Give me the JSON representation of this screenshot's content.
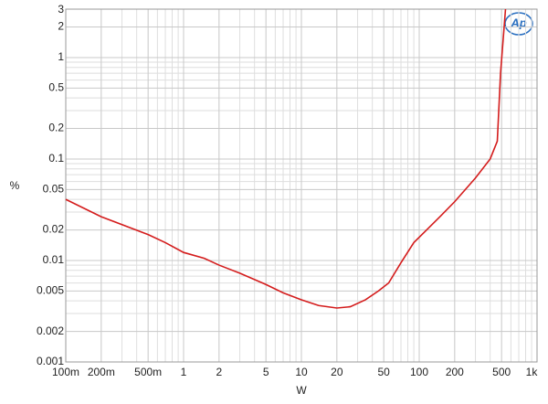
{
  "chart_data": {
    "type": "line",
    "logo": "Ap",
    "xlabel": "W",
    "ylabel": "%",
    "xlog": true,
    "ylog": true,
    "grid": true,
    "xlim": [
      0.1,
      1000
    ],
    "ylim": [
      0.001,
      3
    ],
    "xticks": [
      {
        "value": 0.1,
        "label": "100m"
      },
      {
        "value": 0.2,
        "label": "200m"
      },
      {
        "value": 0.5,
        "label": "500m"
      },
      1,
      2,
      5,
      10,
      20,
      50,
      100,
      200,
      500,
      {
        "value": 1000,
        "label": "1k"
      }
    ],
    "yticks": [
      0.001,
      0.002,
      0.005,
      0.01,
      0.02,
      0.05,
      0.1,
      0.2,
      0.5,
      1,
      2,
      3
    ],
    "xminor": [
      0.3,
      0.4,
      0.6,
      0.7,
      0.8,
      0.9,
      3,
      4,
      6,
      7,
      8,
      9,
      30,
      40,
      60,
      70,
      80,
      90,
      300,
      400,
      600,
      700,
      800,
      900
    ],
    "yminor": [
      0.003,
      0.004,
      0.006,
      0.007,
      0.008,
      0.009,
      0.03,
      0.04,
      0.06,
      0.07,
      0.08,
      0.09,
      0.3,
      0.4,
      0.6,
      0.7,
      0.8,
      0.9
    ],
    "series": [
      {
        "color": "#d41c1c",
        "x": [
          0.1,
          0.2,
          0.5,
          0.7,
          1,
          1.5,
          2,
          3,
          5,
          7,
          10,
          14,
          20,
          26,
          35,
          45,
          55,
          70,
          90,
          150,
          200,
          300,
          400,
          460,
          490,
          540
        ],
        "values": [
          0.04,
          0.027,
          0.018,
          0.015,
          0.012,
          0.0105,
          0.009,
          0.0075,
          0.0058,
          0.0048,
          0.0041,
          0.0036,
          0.0034,
          0.0035,
          0.0041,
          0.005,
          0.006,
          0.0095,
          0.015,
          0.027,
          0.038,
          0.065,
          0.1,
          0.15,
          0.7,
          3
        ]
      }
    ]
  }
}
